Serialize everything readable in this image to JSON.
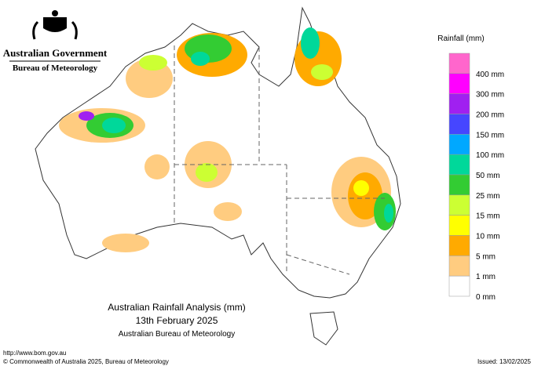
{
  "header": {
    "government": "Australian Government",
    "agency": "Bureau of Meteorology"
  },
  "legend": {
    "title": "Rainfall (mm)",
    "labels": [
      "400 mm",
      "300 mm",
      "200 mm",
      "150 mm",
      "100 mm",
      "50 mm",
      "25 mm",
      "15 mm",
      "10 mm",
      "5 mm",
      "1 mm",
      "0 mm"
    ],
    "colors": [
      "#ff66cc",
      "#ff00ff",
      "#a020f0",
      "#4646ff",
      "#00a8ff",
      "#00d89a",
      "#33cc33",
      "#ccff33",
      "#ffff00",
      "#ffaa00",
      "#ffcc80",
      "#ffffff"
    ]
  },
  "title": {
    "line1": "Australian Rainfall Analysis (mm)",
    "line2": "13th February 2025",
    "line3": "Australian Bureau of Meteorology"
  },
  "footer": {
    "url": "http://www.bom.gov.au",
    "copyright": "© Commonwealth of Australia 2025, Bureau of Meteorology",
    "issued": "Issued: 13/02/2025"
  }
}
